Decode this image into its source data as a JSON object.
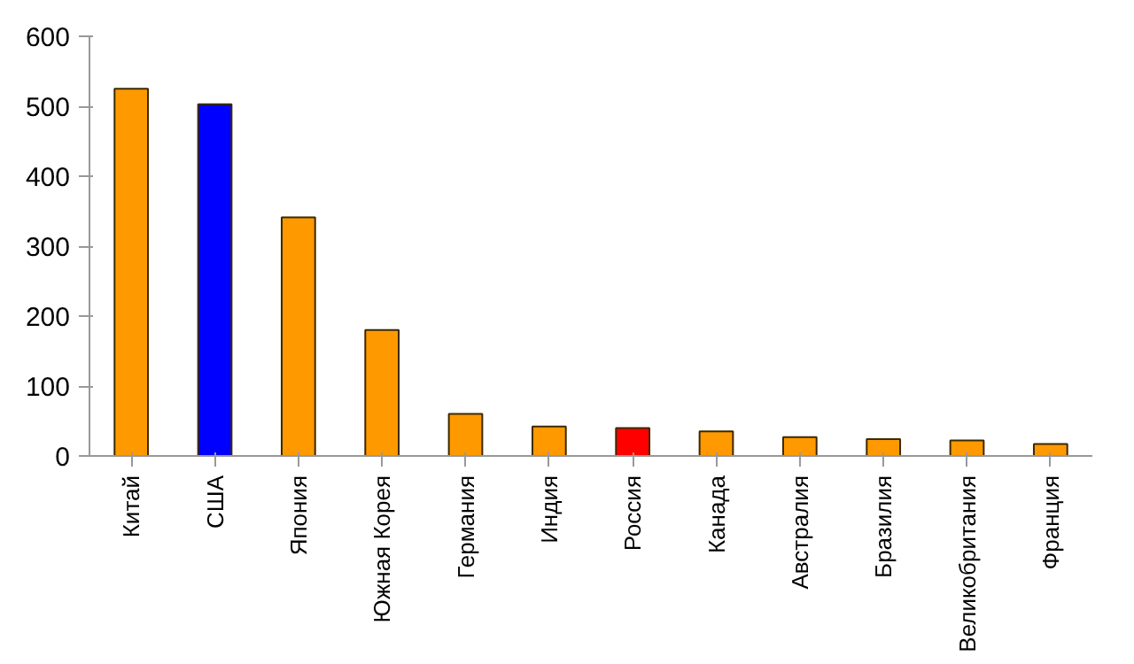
{
  "chart_data": {
    "type": "bar",
    "categories": [
      "Китай",
      "США",
      "Япония",
      "Южная Корея",
      "Германия",
      "Индия",
      "Россия",
      "Канада",
      "Австралия",
      "Бразилия",
      "Великобритания",
      "Франция"
    ],
    "values": [
      525,
      503,
      341,
      180,
      60,
      42,
      40,
      35,
      27,
      24,
      22,
      17
    ],
    "colors": [
      "#ff9900",
      "#0000ff",
      "#ff9900",
      "#ff9900",
      "#ff9900",
      "#ff9900",
      "#ff0000",
      "#ff9900",
      "#ff9900",
      "#ff9900",
      "#ff9900",
      "#ff9900"
    ],
    "ylim": [
      0,
      600
    ],
    "yticks": [
      0,
      100,
      200,
      300,
      400,
      500,
      600
    ],
    "grid": false
  }
}
